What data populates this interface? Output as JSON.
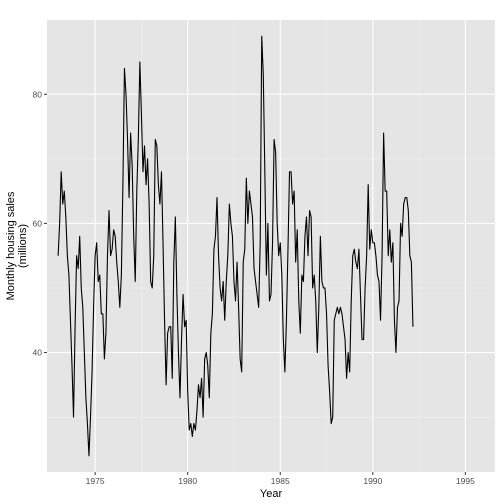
{
  "chart_data": {
    "type": "line",
    "xlabel": "Year",
    "ylabel_lines": [
      "Monthly housing sales",
      "(millions)"
    ],
    "xlim": [
      1972.4,
      1996.6
    ],
    "ylim": [
      21.5,
      91.5
    ],
    "x_ticks": [
      1975,
      1980,
      1985,
      1990,
      1995
    ],
    "x_minor_ticks": [
      1977.5,
      1982.5,
      1987.5,
      1992.5
    ],
    "y_ticks": [
      40,
      60,
      80
    ],
    "y_minor_ticks": [
      30,
      50,
      70
    ],
    "x_tick_labels": [
      "1975",
      "1980",
      "1985",
      "1990",
      "1995"
    ],
    "y_tick_labels": [
      "40",
      "60",
      "80"
    ],
    "grid": true,
    "series": [
      {
        "x_start": 1973.0,
        "x_step": 0.0833333,
        "values": [
          55,
          60,
          68,
          63,
          65,
          61,
          55,
          52,
          45,
          38,
          30,
          44,
          55,
          53,
          58,
          50,
          47,
          40,
          33,
          29,
          24,
          30,
          37,
          47,
          55,
          57,
          51,
          52,
          46,
          46,
          39,
          43,
          55,
          62,
          55,
          56,
          59,
          58,
          54,
          51,
          47,
          52,
          66,
          84,
          80,
          73,
          64,
          74,
          69,
          58,
          51,
          65,
          73,
          85,
          77,
          68,
          72,
          66,
          70,
          63,
          51,
          50,
          55,
          73,
          72,
          66,
          63,
          68,
          57,
          45,
          35,
          43,
          44,
          44,
          36,
          54,
          61,
          49,
          40,
          33,
          42,
          49,
          44,
          45,
          34,
          28,
          29,
          27,
          29,
          28,
          31,
          35,
          33,
          36,
          30,
          39,
          40,
          38,
          33,
          43,
          46,
          56,
          58,
          64,
          55,
          50,
          48,
          51,
          45,
          51,
          55,
          63,
          60,
          58,
          51,
          48,
          54,
          47,
          39,
          37,
          54,
          56,
          67,
          60,
          65,
          63,
          61,
          53,
          51,
          49,
          47,
          57,
          89,
          83,
          68,
          52,
          60,
          48,
          49,
          57,
          73,
          71,
          60,
          55,
          57,
          52,
          42,
          37,
          45,
          56,
          68,
          68,
          63,
          65,
          54,
          59,
          48,
          43,
          52,
          51,
          58,
          61,
          55,
          62,
          61,
          50,
          52,
          48,
          40,
          47,
          58,
          51,
          50,
          50,
          46,
          38,
          34,
          29,
          30,
          45,
          46,
          47,
          46,
          47,
          46,
          44,
          42,
          36,
          40,
          37,
          48,
          55,
          56,
          54,
          53,
          56,
          49,
          42,
          42,
          50,
          55,
          66,
          56,
          59,
          57,
          57,
          55,
          52,
          51,
          45,
          55,
          74,
          65,
          65,
          55,
          59,
          54,
          57,
          45,
          40,
          47,
          48,
          60,
          58,
          63,
          64,
          64,
          62,
          55,
          54,
          44
        ]
      }
    ]
  }
}
